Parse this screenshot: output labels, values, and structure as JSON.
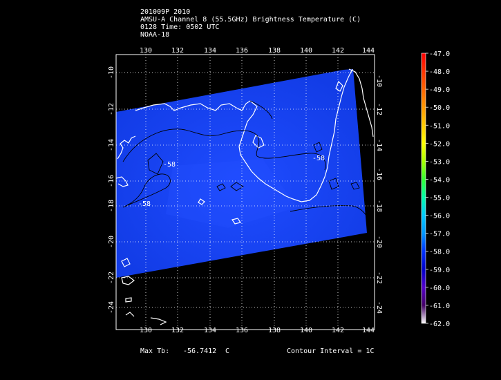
{
  "header": {
    "line1": "201009P 2010",
    "line2": "AMSU-A Channel 8 (55.5GHz) Brightness Temperature (C)",
    "line3": "0128 Time: 0502 UTC",
    "line4": "NOAA-18"
  },
  "map": {
    "lon_ticks": [
      "130",
      "132",
      "134",
      "136",
      "138",
      "140",
      "142",
      "144"
    ],
    "lat_ticks": [
      "-10",
      "-12",
      "-14",
      "-16",
      "-18",
      "-20",
      "-22",
      "-24"
    ],
    "contour_labels": [
      "-58",
      "-58",
      "-58"
    ],
    "colors": {
      "swath": "#1a3cff",
      "coast": "#ffffff",
      "grid": "#ffffff",
      "contour": "#000000"
    }
  },
  "colorbar": {
    "labels": [
      "-47.0",
      "-48.0",
      "-49.0",
      "-50.0",
      "-51.0",
      "-52.0",
      "-53.0",
      "-54.0",
      "-55.0",
      "-56.0",
      "-57.0",
      "-58.0",
      "-59.0",
      "-60.0",
      "-61.0",
      "-62.0"
    ],
    "colors": [
      "#ff0000",
      "#ff3300",
      "#ff6600",
      "#ff9900",
      "#ffcc00",
      "#ffff00",
      "#aaff00",
      "#33ff33",
      "#00ffaa",
      "#00ccff",
      "#0099ff",
      "#0033ff",
      "#0000cc",
      "#5500cc",
      "#440066",
      "#ffffff"
    ]
  },
  "footer": {
    "max_label": "Max Tb:",
    "max_value": "-56.7412",
    "max_unit": "C",
    "contour_interval": "Contour Interval = 1C"
  }
}
